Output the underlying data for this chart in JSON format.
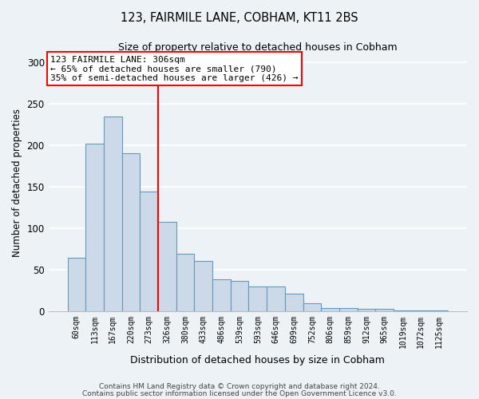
{
  "title": "123, FAIRMILE LANE, COBHAM, KT11 2BS",
  "subtitle": "Size of property relative to detached houses in Cobham",
  "xlabel": "Distribution of detached houses by size in Cobham",
  "ylabel": "Number of detached properties",
  "bin_labels": [
    "60sqm",
    "113sqm",
    "167sqm",
    "220sqm",
    "273sqm",
    "326sqm",
    "380sqm",
    "433sqm",
    "486sqm",
    "539sqm",
    "593sqm",
    "646sqm",
    "699sqm",
    "752sqm",
    "806sqm",
    "859sqm",
    "912sqm",
    "965sqm",
    "1019sqm",
    "1072sqm",
    "1125sqm"
  ],
  "bar_heights": [
    65,
    202,
    235,
    191,
    145,
    108,
    69,
    61,
    39,
    37,
    30,
    30,
    21,
    10,
    4,
    4,
    3,
    3,
    1,
    1,
    1
  ],
  "bar_color": "#ccd9e8",
  "bar_edge_color": "#6699bb",
  "vline_x": 4.5,
  "vline_color": "red",
  "annotation_title": "123 FAIRMILE LANE: 306sqm",
  "annotation_line1": "← 65% of detached houses are smaller (790)",
  "annotation_line2": "35% of semi-detached houses are larger (426) →",
  "annotation_box_color": "white",
  "annotation_box_edge_color": "red",
  "ylim": [
    0,
    310
  ],
  "yticks": [
    0,
    50,
    100,
    150,
    200,
    250,
    300
  ],
  "footer1": "Contains HM Land Registry data © Crown copyright and database right 2024.",
  "footer2": "Contains public sector information licensed under the Open Government Licence v3.0.",
  "bg_color": "#edf2f7",
  "plot_bg_color": "#edf2f7",
  "grid_color": "white",
  "figsize": [
    6.0,
    5.0
  ],
  "dpi": 100
}
